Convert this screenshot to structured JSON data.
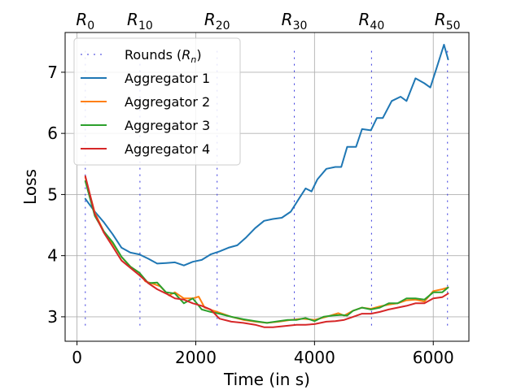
{
  "chart_data": {
    "type": "line",
    "title": "",
    "xlabel": "Time (in s)",
    "ylabel": "Loss",
    "xlim": [
      -200,
      6600
    ],
    "ylim": [
      2.6,
      7.65
    ],
    "xticks": [
      0,
      2000,
      4000,
      6000
    ],
    "yticks": [
      3,
      4,
      5,
      6,
      7
    ],
    "grid": true,
    "legend": "upper-left",
    "rounds": {
      "legend_label": "Rounds (",
      "legend_var": "R",
      "legend_sub": "n",
      "legend_close": ")",
      "color": "#3333dd",
      "markers": [
        {
          "label": "R",
          "sub": "0",
          "x": 140
        },
        {
          "label": "R",
          "sub": "10",
          "x": 1060
        },
        {
          "label": "R",
          "sub": "20",
          "x": 2360
        },
        {
          "label": "R",
          "sub": "30",
          "x": 3660
        },
        {
          "label": "R",
          "sub": "40",
          "x": 4960
        },
        {
          "label": "R",
          "sub": "50",
          "x": 6240
        }
      ]
    },
    "series": [
      {
        "name": "Aggregator 1",
        "color": "#1f77b4",
        "points": [
          [
            140,
            4.93
          ],
          [
            300,
            4.72
          ],
          [
            450,
            4.55
          ],
          [
            600,
            4.35
          ],
          [
            750,
            4.13
          ],
          [
            900,
            4.05
          ],
          [
            1050,
            4.02
          ],
          [
            1200,
            3.95
          ],
          [
            1350,
            3.87
          ],
          [
            1500,
            3.88
          ],
          [
            1650,
            3.89
          ],
          [
            1800,
            3.84
          ],
          [
            1950,
            3.9
          ],
          [
            2100,
            3.93
          ],
          [
            2250,
            4.02
          ],
          [
            2400,
            4.07
          ],
          [
            2550,
            4.13
          ],
          [
            2700,
            4.17
          ],
          [
            2850,
            4.3
          ],
          [
            3000,
            4.45
          ],
          [
            3150,
            4.57
          ],
          [
            3300,
            4.6
          ],
          [
            3450,
            4.62
          ],
          [
            3600,
            4.72
          ],
          [
            3750,
            4.95
          ],
          [
            3850,
            5.1
          ],
          [
            3950,
            5.05
          ],
          [
            4050,
            5.25
          ],
          [
            4200,
            5.42
          ],
          [
            4350,
            5.45
          ],
          [
            4450,
            5.45
          ],
          [
            4550,
            5.78
          ],
          [
            4700,
            5.78
          ],
          [
            4800,
            6.07
          ],
          [
            4950,
            6.05
          ],
          [
            5050,
            6.25
          ],
          [
            5150,
            6.25
          ],
          [
            5300,
            6.53
          ],
          [
            5450,
            6.6
          ],
          [
            5550,
            6.53
          ],
          [
            5700,
            6.9
          ],
          [
            5850,
            6.82
          ],
          [
            5950,
            6.75
          ],
          [
            6050,
            7.05
          ],
          [
            6180,
            7.45
          ],
          [
            6250,
            7.21
          ]
        ]
      },
      {
        "name": "Aggregator 2",
        "color": "#ff7f0e",
        "points": [
          [
            140,
            5.28
          ],
          [
            300,
            4.7
          ],
          [
            450,
            4.4
          ],
          [
            600,
            4.2
          ],
          [
            750,
            3.98
          ],
          [
            900,
            3.82
          ],
          [
            1050,
            3.72
          ],
          [
            1150,
            3.58
          ],
          [
            1250,
            3.55
          ],
          [
            1400,
            3.5
          ],
          [
            1550,
            3.35
          ],
          [
            1650,
            3.4
          ],
          [
            1800,
            3.3
          ],
          [
            1950,
            3.3
          ],
          [
            2050,
            3.33
          ],
          [
            2150,
            3.15
          ],
          [
            2300,
            3.1
          ],
          [
            2450,
            3.05
          ],
          [
            2600,
            3.0
          ],
          [
            2800,
            2.95
          ],
          [
            3000,
            2.92
          ],
          [
            3200,
            2.9
          ],
          [
            3400,
            2.92
          ],
          [
            3600,
            2.95
          ],
          [
            3800,
            2.97
          ],
          [
            4000,
            2.95
          ],
          [
            4200,
            3.0
          ],
          [
            4400,
            3.06
          ],
          [
            4500,
            3.02
          ],
          [
            4650,
            3.1
          ],
          [
            4800,
            3.15
          ],
          [
            4950,
            3.13
          ],
          [
            5100,
            3.17
          ],
          [
            5250,
            3.2
          ],
          [
            5400,
            3.22
          ],
          [
            5550,
            3.27
          ],
          [
            5700,
            3.28
          ],
          [
            5850,
            3.25
          ],
          [
            6000,
            3.42
          ],
          [
            6150,
            3.45
          ],
          [
            6250,
            3.48
          ]
        ]
      },
      {
        "name": "Aggregator 3",
        "color": "#2ca02c",
        "points": [
          [
            140,
            5.22
          ],
          [
            300,
            4.65
          ],
          [
            450,
            4.4
          ],
          [
            600,
            4.22
          ],
          [
            750,
            3.98
          ],
          [
            900,
            3.82
          ],
          [
            1050,
            3.72
          ],
          [
            1200,
            3.55
          ],
          [
            1350,
            3.56
          ],
          [
            1500,
            3.4
          ],
          [
            1650,
            3.38
          ],
          [
            1800,
            3.22
          ],
          [
            1950,
            3.3
          ],
          [
            2100,
            3.12
          ],
          [
            2250,
            3.08
          ],
          [
            2400,
            3.05
          ],
          [
            2600,
            3.0
          ],
          [
            2800,
            2.96
          ],
          [
            3000,
            2.93
          ],
          [
            3200,
            2.9
          ],
          [
            3400,
            2.93
          ],
          [
            3550,
            2.95
          ],
          [
            3700,
            2.95
          ],
          [
            3850,
            2.98
          ],
          [
            4000,
            2.93
          ],
          [
            4150,
            3.0
          ],
          [
            4300,
            3.02
          ],
          [
            4450,
            3.03
          ],
          [
            4550,
            3.02
          ],
          [
            4650,
            3.1
          ],
          [
            4800,
            3.15
          ],
          [
            4950,
            3.12
          ],
          [
            5100,
            3.15
          ],
          [
            5250,
            3.22
          ],
          [
            5400,
            3.22
          ],
          [
            5550,
            3.3
          ],
          [
            5700,
            3.3
          ],
          [
            5850,
            3.28
          ],
          [
            6000,
            3.4
          ],
          [
            6150,
            3.4
          ],
          [
            6250,
            3.48
          ]
        ]
      },
      {
        "name": "Aggregator 4",
        "color": "#d62728",
        "points": [
          [
            140,
            5.3
          ],
          [
            300,
            4.68
          ],
          [
            450,
            4.38
          ],
          [
            600,
            4.15
          ],
          [
            750,
            3.92
          ],
          [
            900,
            3.8
          ],
          [
            1050,
            3.68
          ],
          [
            1200,
            3.55
          ],
          [
            1350,
            3.45
          ],
          [
            1500,
            3.38
          ],
          [
            1650,
            3.3
          ],
          [
            1800,
            3.28
          ],
          [
            1950,
            3.22
          ],
          [
            2100,
            3.18
          ],
          [
            2250,
            3.12
          ],
          [
            2400,
            2.97
          ],
          [
            2600,
            2.92
          ],
          [
            2800,
            2.9
          ],
          [
            3000,
            2.87
          ],
          [
            3150,
            2.83
          ],
          [
            3300,
            2.83
          ],
          [
            3500,
            2.85
          ],
          [
            3700,
            2.87
          ],
          [
            3850,
            2.87
          ],
          [
            4000,
            2.88
          ],
          [
            4200,
            2.92
          ],
          [
            4350,
            2.93
          ],
          [
            4500,
            2.95
          ],
          [
            4650,
            3.0
          ],
          [
            4800,
            3.05
          ],
          [
            4950,
            3.05
          ],
          [
            5100,
            3.08
          ],
          [
            5250,
            3.12
          ],
          [
            5400,
            3.15
          ],
          [
            5550,
            3.18
          ],
          [
            5700,
            3.22
          ],
          [
            5850,
            3.22
          ],
          [
            6000,
            3.3
          ],
          [
            6150,
            3.32
          ],
          [
            6250,
            3.38
          ]
        ]
      }
    ]
  }
}
